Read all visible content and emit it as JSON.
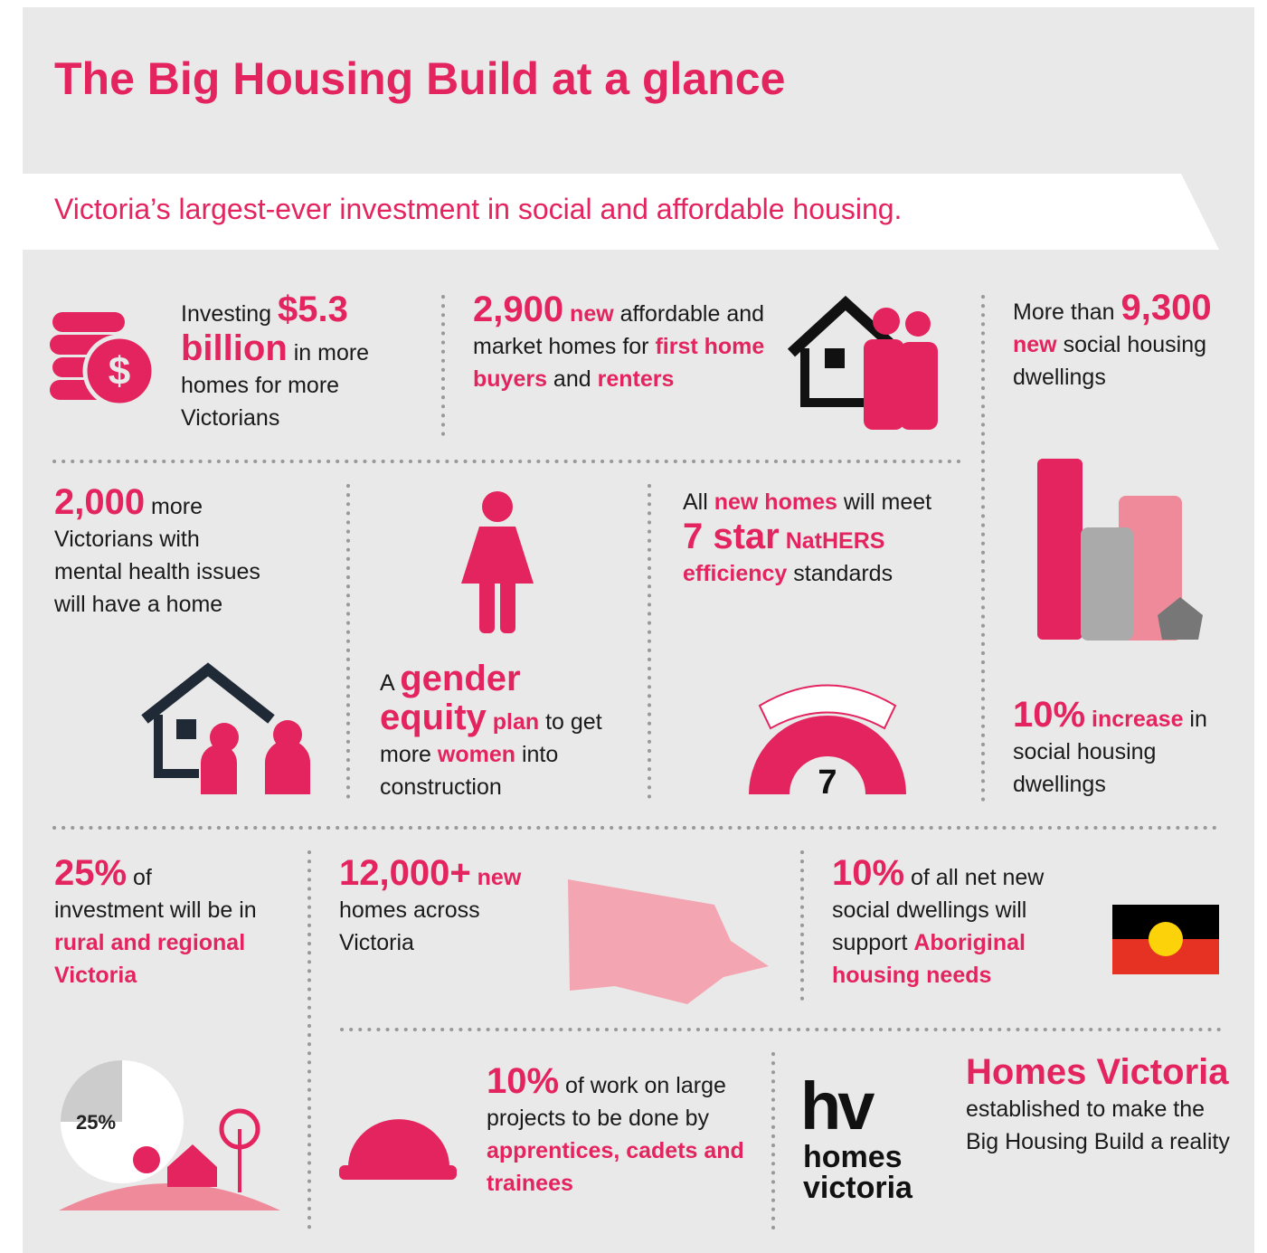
{
  "title": "The Big Housing Build at a glance",
  "subtitle": "Victoria’s largest-ever investment in social and affordable housing.",
  "panels": [
    {
      "runs": [
        {
          "t": "Investing "
        },
        {
          "t": "$5.3 billion",
          "em": "big"
        },
        {
          "t": " in more homes for more Victorians"
        }
      ]
    },
    {
      "runs": [
        {
          "t": "2,900",
          "em": "big"
        },
        {
          "t": " new",
          "em": "bold"
        },
        {
          "t": " affordable and market homes for "
        },
        {
          "t": "first home buyers",
          "em": "bold"
        },
        {
          "t": " and "
        },
        {
          "t": "renters",
          "em": "bold"
        }
      ]
    },
    {
      "runs": [
        {
          "t": "More than "
        },
        {
          "t": "9,300",
          "em": "big"
        },
        {
          "t": " new",
          "em": "bold"
        },
        {
          "t": " social housing dwellings"
        }
      ]
    },
    {
      "runs": [
        {
          "t": "10%",
          "em": "big"
        },
        {
          "t": " increase",
          "em": "bold"
        },
        {
          "t": " in social housing dwellings"
        }
      ]
    },
    {
      "runs": [
        {
          "t": "2,000",
          "em": "big"
        },
        {
          "t": " more Victorians with mental health issues will have a home"
        }
      ]
    },
    {
      "runs": [
        {
          "t": "A "
        },
        {
          "t": "gender equity",
          "em": "big"
        },
        {
          "t": " plan",
          "em": "bold"
        },
        {
          "t": " to get more "
        },
        {
          "t": "women",
          "em": "bold"
        },
        {
          "t": " into construction"
        }
      ]
    },
    {
      "runs": [
        {
          "t": "All "
        },
        {
          "t": "new homes",
          "em": "bold"
        },
        {
          "t": " will meet "
        },
        {
          "t": "7 star",
          "em": "big"
        },
        {
          "t": " NatHERS efficiency",
          "em": "bold"
        },
        {
          "t": " standards"
        }
      ]
    },
    {
      "runs": [
        {
          "t": "25%",
          "em": "big"
        },
        {
          "t": " of investment will be in "
        },
        {
          "t": "rural and regional Victoria",
          "em": "bold"
        }
      ]
    },
    {
      "runs": [
        {
          "t": "12,000+",
          "em": "big"
        },
        {
          "t": " "
        },
        {
          "t": "new",
          "em": "bold"
        },
        {
          "t": " homes across Victoria"
        }
      ]
    },
    {
      "runs": [
        {
          "t": "10%",
          "em": "big"
        },
        {
          "t": " of all net new social dwellings will support "
        },
        {
          "t": "Aboriginal housing needs",
          "em": "bold"
        }
      ]
    },
    {
      "runs": [
        {
          "t": "10%",
          "em": "big"
        },
        {
          "t": " of work on large projects to be done by "
        },
        {
          "t": "apprentices, cadets and trainees",
          "em": "bold"
        }
      ]
    },
    {
      "runs": [
        {
          "t": "Homes Victoria",
          "em": "big"
        },
        {
          "t": " established to make the Big Housing Build a reality"
        }
      ]
    }
  ],
  "star_icon_label": "7",
  "pie_icon_label": "25%",
  "logo": {
    "mark": "hv",
    "name": "homes victoria"
  }
}
